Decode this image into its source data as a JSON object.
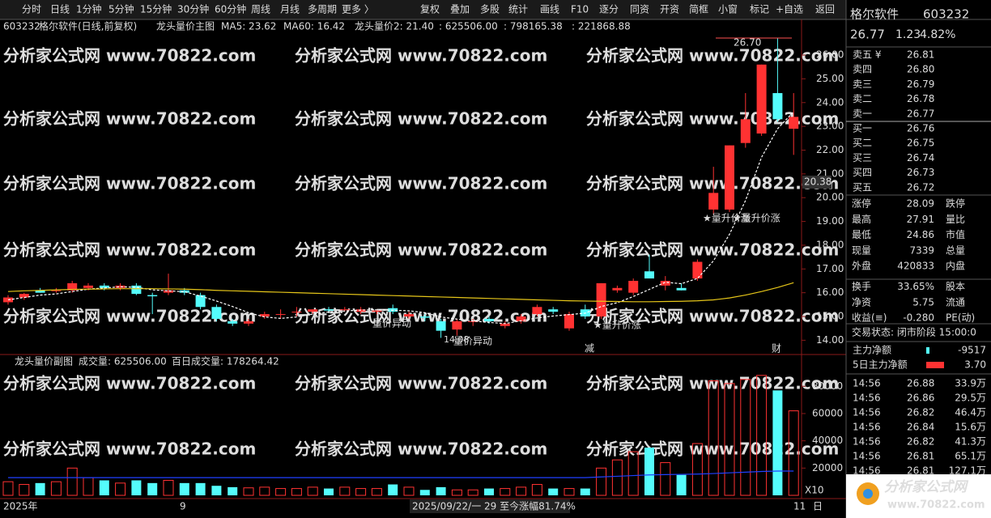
{
  "toolbar": {
    "left": [
      "分时",
      "日线",
      "1分钟",
      "5分钟",
      "15分钟",
      "30分钟",
      "60分钟",
      "周线",
      "月线",
      "多周期",
      "更多 〉"
    ],
    "right": [
      "复权",
      "叠加",
      "多股",
      "统计",
      "画线",
      "F10",
      "逐分",
      "同资",
      "开资",
      "简框",
      "小窗",
      "标记",
      "+自选",
      "返回"
    ]
  },
  "main_legend": {
    "code": "603232",
    "name": "格尔软件(日线,前复权)",
    "indicator": "龙头量价主图",
    "ma5": "MA5: 23.62",
    "ma60": "MA60: 16.42",
    "v1": "龙头量价2: 21.40",
    "v2": ": 625506.00",
    "v3": ": 798165.38",
    "v4": ": 221868.88"
  },
  "vol_legend": {
    "indicator": "龙头量价副图",
    "volume": "成交量: 625506.00",
    "avg": "百日成交量: 178264.42"
  },
  "annotations": {
    "high": "26.70",
    "low": "14.08",
    "last": "20.38",
    "a1": "量价异动",
    "a2": "量价异动",
    "a3": "★量升价涨",
    "a4": "★量升价涨",
    "a5": "★量升价涨",
    "m1": "减",
    "m2": "财"
  },
  "x_axis": {
    "start": "2025年",
    "sep": "9",
    "cursor": "2025/09/22/一 29 至今涨幅81.74%",
    "end": "11",
    "period": "日",
    "unit": "X10"
  },
  "watermark": "分析家公式网 www.70822.com",
  "logo": {
    "name": "分析家公式网",
    "url": "www.70822.com"
  },
  "chart_data": [
    {
      "type": "candlestick",
      "up_color": "#ff3232",
      "down_color": "#54fcfc",
      "open": [
        15.6,
        15.8,
        16.1,
        16.1,
        16.1,
        16.2,
        16.3,
        16.2,
        16.3,
        15.9,
        16.0,
        16.1,
        15.9,
        15.4,
        14.8,
        14.7,
        15.0,
        15.1,
        15.2,
        15.2,
        15.3,
        15.3,
        15.2,
        15.2,
        15.35,
        15.0,
        15.0,
        14.8,
        14.45,
        14.8,
        14.9,
        14.6,
        14.8,
        15.1,
        15.3,
        14.5,
        15.3,
        15.0,
        16.1,
        16.0,
        16.9,
        16.3,
        16.2,
        16.6,
        19.5,
        19.5,
        22.3,
        22.7,
        24.4,
        22.9
      ],
      "high": [
        15.9,
        16.0,
        16.2,
        16.2,
        16.5,
        16.4,
        16.4,
        16.4,
        16.4,
        16.0,
        16.8,
        16.2,
        16.0,
        15.5,
        14.9,
        14.9,
        15.2,
        15.3,
        15.4,
        15.3,
        15.4,
        15.4,
        15.4,
        15.3,
        15.5,
        15.2,
        15.1,
        14.9,
        14.9,
        14.9,
        15.0,
        14.8,
        15.1,
        15.5,
        15.4,
        15.2,
        15.5,
        16.4,
        16.3,
        16.6,
        17.6,
        16.7,
        16.4,
        17.4,
        21.3,
        22.2,
        24.4,
        25.6,
        26.7,
        24.4
      ],
      "low": [
        15.5,
        15.7,
        16.0,
        16.0,
        16.0,
        16.1,
        16.1,
        16.1,
        15.9,
        15.1,
        15.9,
        15.9,
        15.3,
        14.8,
        14.6,
        14.6,
        14.9,
        14.9,
        15.0,
        15.1,
        15.2,
        15.2,
        15.1,
        15.1,
        15.1,
        14.9,
        14.8,
        14.1,
        14.2,
        14.6,
        14.7,
        14.5,
        14.7,
        15.0,
        15.1,
        14.4,
        14.9,
        14.9,
        16.0,
        15.9,
        16.6,
        16.1,
        16.1,
        16.5,
        19.3,
        19.4,
        22.1,
        22.6,
        23.2,
        21.8
      ],
      "close": [
        15.8,
        15.95,
        16.0,
        16.1,
        16.4,
        16.3,
        16.2,
        16.3,
        15.95,
        15.85,
        16.1,
        16.0,
        15.4,
        14.9,
        14.7,
        14.8,
        15.1,
        15.1,
        15.2,
        15.3,
        15.25,
        15.3,
        15.3,
        15.25,
        15.2,
        15.1,
        14.95,
        14.4,
        14.8,
        14.8,
        14.8,
        14.7,
        15.0,
        15.4,
        15.2,
        15.1,
        15.0,
        16.4,
        16.2,
        16.5,
        16.6,
        16.5,
        16.1,
        17.3,
        20.2,
        22.2,
        23.3,
        25.6,
        23.3,
        23.4
      ],
      "series": [
        {
          "color": "#ffffff",
          "dashed": true,
          "values": [
            15.7,
            15.8,
            15.9,
            15.95,
            16.05,
            16.15,
            16.2,
            16.25,
            16.23,
            16.12,
            16.08,
            16.04,
            15.86,
            15.65,
            15.42,
            15.16,
            14.98,
            14.92,
            14.98,
            15.1,
            15.19,
            15.23,
            15.27,
            15.28,
            15.26,
            15.24,
            15.16,
            14.98,
            14.89,
            14.81,
            14.75,
            14.7,
            14.82,
            14.94,
            15.02,
            15.08,
            15.14,
            15.42,
            15.58,
            15.84,
            16.14,
            16.44,
            16.38,
            16.6,
            17.34,
            18.46,
            19.88,
            21.7,
            22.9,
            23.62
          ]
        },
        {
          "color": "#e6c619",
          "dashed": false,
          "values": [
            16.05,
            16.08,
            16.1,
            16.12,
            16.14,
            16.15,
            16.16,
            16.17,
            16.17,
            16.17,
            16.16,
            16.15,
            16.13,
            16.1,
            16.08,
            16.06,
            16.04,
            16.02,
            16.0,
            15.98,
            15.96,
            15.94,
            15.92,
            15.9,
            15.88,
            15.86,
            15.84,
            15.82,
            15.8,
            15.78,
            15.76,
            15.74,
            15.72,
            15.7,
            15.68,
            15.66,
            15.65,
            15.64,
            15.63,
            15.62,
            15.62,
            15.63,
            15.64,
            15.66,
            15.7,
            15.78,
            15.9,
            16.05,
            16.22,
            16.42
          ]
        }
      ],
      "ylim": [
        13.4,
        27.5
      ],
      "yticks": [
        {
          "value": 14,
          "label": "14.00"
        },
        {
          "value": 15,
          "label": "15.00"
        },
        {
          "value": 16,
          "label": "16.00"
        },
        {
          "value": 17,
          "label": "17.00"
        },
        {
          "value": 18,
          "label": "18.00"
        },
        {
          "value": 19,
          "label": "19.00"
        },
        {
          "value": 20,
          "label": "20.00"
        },
        {
          "value": 21,
          "label": "21.00"
        },
        {
          "value": 22,
          "label": "22.00"
        },
        {
          "value": 23,
          "label": "23.00"
        },
        {
          "value": 24,
          "label": "24.00"
        },
        {
          "value": 25,
          "label": "25.00"
        },
        {
          "value": 26,
          "label": "26.00"
        }
      ]
    },
    {
      "type": "bar",
      "values": [
        10000,
        8000,
        9000,
        10000,
        20000,
        13000,
        11000,
        9000,
        11000,
        9000,
        11000,
        9000,
        9000,
        7000,
        6000,
        5500,
        6000,
        5000,
        5000,
        6000,
        5000,
        6000,
        5000,
        5000,
        8000,
        6000,
        4000,
        6000,
        4000,
        4000,
        5000,
        5000,
        6000,
        8000,
        5000,
        5000,
        5000,
        20000,
        26000,
        32000,
        35000,
        24000,
        15000,
        38000,
        84000,
        82000,
        85000,
        88000,
        77000,
        62000
      ],
      "series": [
        {
          "color": "#2040ff",
          "values": [
            13000,
            13000,
            13000,
            13000,
            13000,
            13000,
            13000,
            13000,
            13000,
            13000,
            13000,
            13000,
            13000,
            13000,
            13000,
            13000,
            13000,
            13000,
            13000,
            13000,
            13000,
            13000,
            13000,
            13000,
            13000,
            13000,
            13000,
            13000,
            13000,
            13000,
            13000,
            13000,
            13000,
            13000,
            13000,
            13000,
            13000,
            13500,
            14000,
            14500,
            15000,
            15200,
            15400,
            15600,
            16000,
            16500,
            17000,
            17500,
            17800,
            17800
          ]
        }
      ],
      "ylim": [
        0,
        95000
      ],
      "yticks": [
        20000,
        40000,
        60000,
        80000
      ]
    }
  ],
  "quote": {
    "name": "格尔软件",
    "code": "603232",
    "price": "26.77",
    "change": "1.23",
    "pct": "4.82%"
  },
  "order_book": {
    "sell": [
      [
        "卖五 ¥",
        "26.81"
      ],
      [
        "卖四",
        "26.80"
      ],
      [
        "卖三",
        "26.79"
      ],
      [
        "卖二",
        "26.78"
      ],
      [
        "卖一",
        "26.77"
      ]
    ],
    "buy": [
      [
        "买一",
        "26.76"
      ],
      [
        "买二",
        "26.75"
      ],
      [
        "买三",
        "26.74"
      ],
      [
        "买四",
        "26.73"
      ],
      [
        "买五",
        "26.72"
      ]
    ]
  },
  "stats": [
    [
      "涨停",
      "28.09",
      "跌停"
    ],
    [
      "最高",
      "27.91",
      "量比"
    ],
    [
      "最低",
      "24.86",
      "市值"
    ],
    [
      "现量",
      "7339",
      "总量"
    ],
    [
      "外盘",
      "420833",
      "内盘"
    ],
    [
      "换手",
      "33.65%",
      "股本"
    ],
    [
      "净资",
      "5.75",
      "流通"
    ],
    [
      "收益(≡)",
      "-0.280",
      "PE(动)"
    ]
  ],
  "status": "交易状态: 闭市阶段 15:00:0",
  "flows": [
    [
      "主力净额",
      "-9517"
    ],
    [
      "5日主力净额",
      "3.70"
    ]
  ],
  "trades": [
    [
      "14:56",
      "26.88",
      "33.9万"
    ],
    [
      "14:56",
      "26.86",
      "29.5万"
    ],
    [
      "14:56",
      "26.82",
      "46.4万"
    ],
    [
      "14:56",
      "26.84",
      "15.6万"
    ],
    [
      "14:56",
      "26.82",
      "41.3万"
    ],
    [
      "14:56",
      "26.81",
      "65.1万"
    ],
    [
      "14:56",
      "26.81",
      "127.1万"
    ]
  ]
}
